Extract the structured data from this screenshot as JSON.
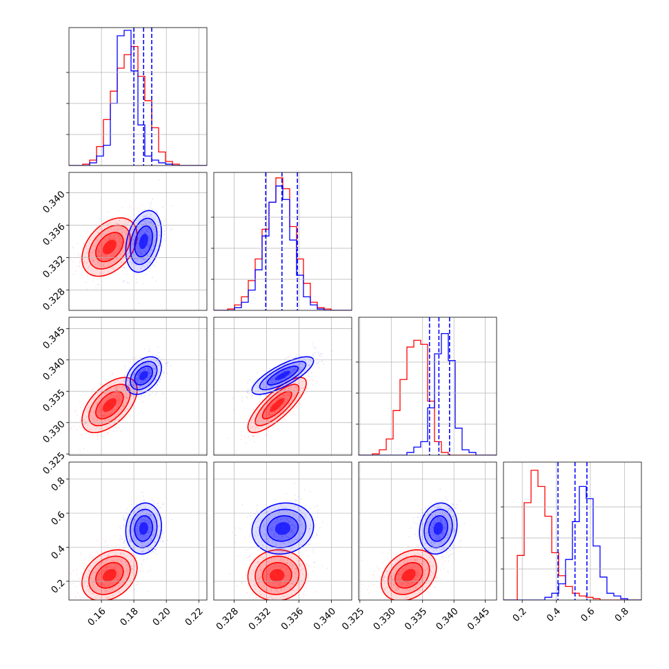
{
  "chart_data": {
    "type": "corner",
    "grid": true,
    "parameters": [
      {
        "range": [
          0.14,
          0.225
        ],
        "ticks": [
          0.16,
          0.18,
          0.2,
          0.22
        ],
        "tick_labels": [
          "0.16",
          "0.18",
          "0.20",
          "0.22"
        ]
      },
      {
        "range": [
          0.3255,
          0.3425
        ],
        "ticks": [
          0.328,
          0.332,
          0.336,
          0.34
        ],
        "tick_labels": [
          "0.328",
          "0.332",
          "0.336",
          "0.340"
        ]
      },
      {
        "range": [
          0.3248,
          0.3468
        ],
        "ticks": [
          0.325,
          0.33,
          0.335,
          0.34,
          0.345
        ],
        "tick_labels": [
          "0.325",
          "0.330",
          "0.335",
          "0.340",
          "0.345"
        ]
      },
      {
        "range": [
          0.09,
          0.9
        ],
        "ticks": [
          0.2,
          0.4,
          0.6,
          0.8
        ],
        "tick_labels": [
          "0.2",
          "0.4",
          "0.6",
          "0.8"
        ]
      }
    ],
    "series": [
      {
        "color": "#ff0000",
        "mean": [
          0.165,
          0.3333,
          0.3328,
          0.235
        ],
        "std": [
          0.0085,
          0.0018,
          0.0022,
          0.075
        ],
        "correlations": [
          [
            0,
            1,
            0.4
          ],
          [
            0,
            2,
            0.55
          ],
          [
            1,
            2,
            0.8
          ],
          [
            0,
            3,
            0.3
          ],
          [
            1,
            3,
            0.05
          ],
          [
            2,
            3,
            0.3
          ]
        ],
        "histograms": [
          [
            0,
            0,
            0.01,
            0.04,
            0.14,
            0.34,
            0.55,
            0.72,
            0.82,
            0.88,
            0.66,
            0.48,
            0.28,
            0.1,
            0.03,
            0.01,
            0,
            0,
            0,
            0
          ],
          [
            0,
            0,
            0.01,
            0.04,
            0.1,
            0.22,
            0.38,
            0.6,
            0.8,
            0.98,
            0.9,
            0.62,
            0.38,
            0.2,
            0.06,
            0.02,
            0.01,
            0,
            0,
            0
          ],
          [
            0,
            0,
            0.01,
            0.04,
            0.12,
            0.33,
            0.56,
            0.8,
            0.85,
            0.82,
            0.4,
            0.1,
            0.02,
            0,
            0,
            0,
            0,
            0,
            0,
            0
          ],
          [
            0,
            0,
            0.33,
            0.72,
            0.96,
            0.84,
            0.62,
            0.35,
            0.18,
            0.1,
            0.05,
            0.03,
            0.02,
            0.01,
            0,
            0,
            0,
            0,
            0,
            0
          ]
        ]
      },
      {
        "color": "#0000ff",
        "mean": [
          0.186,
          0.334,
          0.3375,
          0.51
        ],
        "std": [
          0.0055,
          0.0019,
          0.0015,
          0.075
        ],
        "correlations": [
          [
            0,
            1,
            0.3
          ],
          [
            0,
            2,
            0.4
          ],
          [
            1,
            2,
            0.78
          ],
          [
            0,
            3,
            0.1
          ],
          [
            1,
            3,
            0.1
          ],
          [
            2,
            3,
            0.15
          ]
        ],
        "quantiles": [
          [
            0.18,
            0.186,
            0.191
          ],
          [
            0.3319,
            0.3339,
            0.3358
          ],
          [
            0.3361,
            0.3376,
            0.3393
          ],
          [
            0.41,
            0.51,
            0.58
          ]
        ],
        "histograms": [
          [
            0,
            0,
            0,
            0.02,
            0.07,
            0.15,
            0.46,
            0.96,
            1.0,
            0.7,
            0.3,
            0.07,
            0.04,
            0.02,
            0.01,
            0,
            0,
            0,
            0,
            0
          ],
          [
            0,
            0,
            0,
            0.02,
            0.06,
            0.15,
            0.3,
            0.55,
            0.8,
            0.92,
            0.82,
            0.52,
            0.26,
            0.1,
            0.04,
            0.01,
            0,
            0,
            0,
            0
          ],
          [
            0,
            0,
            0,
            0,
            0,
            0,
            0,
            0.02,
            0.06,
            0.1,
            0.35,
            0.75,
            0.9,
            0.7,
            0.2,
            0.04,
            0.02,
            0,
            0,
            0
          ],
          [
            0,
            0,
            0,
            0,
            0,
            0,
            0.02,
            0.05,
            0.12,
            0.3,
            0.58,
            0.84,
            0.75,
            0.4,
            0.17,
            0.05,
            0.03,
            0.01,
            0,
            0
          ]
        ]
      }
    ]
  }
}
